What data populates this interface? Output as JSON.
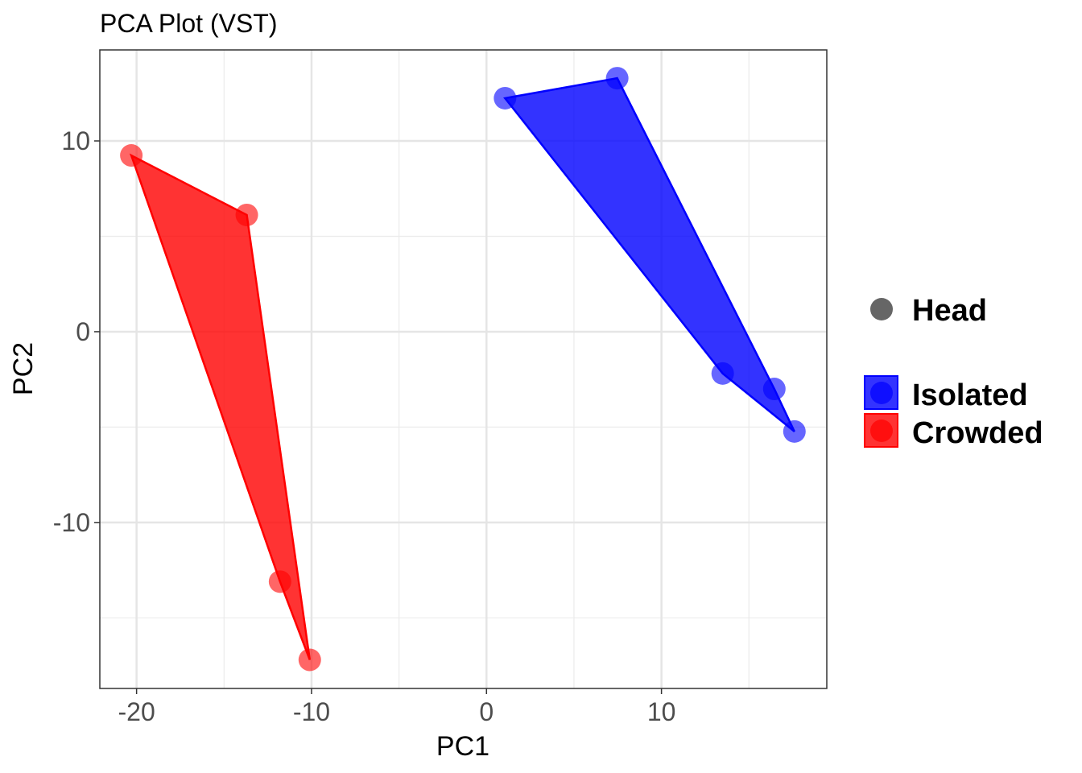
{
  "chart_data": {
    "type": "scatter",
    "title": "PCA Plot (VST)",
    "xlabel": "PC1",
    "ylabel": "PC2",
    "xlim": [
      -22.1,
      19.45
    ],
    "ylim": [
      -18.7,
      14.77
    ],
    "xticks": [
      -20,
      -10,
      0,
      10
    ],
    "yticks": [
      -10,
      0,
      10
    ],
    "xtick_labels": [
      "-20",
      "-10",
      "0",
      "10"
    ],
    "ytick_labels": [
      "-10",
      "0",
      "10"
    ],
    "grid": true,
    "legend_position": "right",
    "shape_legend": {
      "label": "Head",
      "color": "#666666"
    },
    "series": [
      {
        "name": "Isolated",
        "color": "#0000ff",
        "x": [
          1.06,
          7.47,
          13.5,
          16.45,
          17.6
        ],
        "y": [
          12.24,
          13.29,
          -2.19,
          -3.0,
          -5.23
        ]
      },
      {
        "name": "Crowded",
        "color": "#ff0000",
        "x": [
          -20.3,
          -13.7,
          -11.8,
          -10.1
        ],
        "y": [
          9.24,
          6.12,
          -13.1,
          -17.2
        ]
      }
    ]
  }
}
